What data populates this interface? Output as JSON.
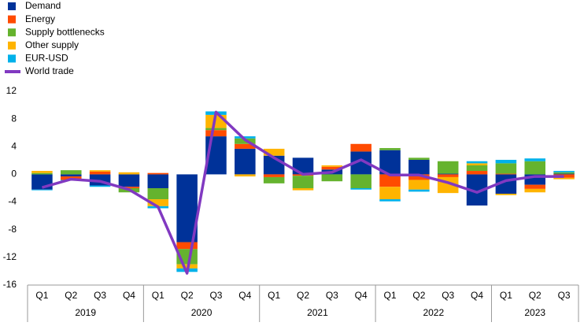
{
  "chart_data": {
    "type": "bar",
    "stacked": true,
    "categories": [
      "Q1",
      "Q2",
      "Q3",
      "Q4",
      "Q1",
      "Q2",
      "Q3",
      "Q4",
      "Q1",
      "Q2",
      "Q3",
      "Q4",
      "Q1",
      "Q2",
      "Q3",
      "Q4",
      "Q1",
      "Q2",
      "Q3"
    ],
    "groups": [
      {
        "label": "2019",
        "count": 4
      },
      {
        "label": "2020",
        "count": 4
      },
      {
        "label": "2021",
        "count": 4
      },
      {
        "label": "2022",
        "count": 4
      },
      {
        "label": "2023",
        "count": 3
      }
    ],
    "series": [
      {
        "name": "Demand",
        "color": "#003299",
        "values": [
          -2.2,
          -0.3,
          -1.6,
          -1.8,
          -2.0,
          -9.8,
          5.5,
          3.7,
          2.7,
          2.4,
          0.7,
          3.3,
          3.5,
          2.1,
          0.1,
          -4.5,
          -2.8,
          -1.5,
          0.1
        ]
      },
      {
        "name": "Energy",
        "color": "#ff4b00",
        "values": [
          0,
          -0.5,
          0.4,
          -0.2,
          0.2,
          -1.0,
          0.9,
          0.7,
          -0.4,
          -0.2,
          0.4,
          1.1,
          -1.8,
          -0.8,
          -0.4,
          0.5,
          0.1,
          -0.6,
          -0.5
        ]
      },
      {
        "name": "Supply bottlenecks",
        "color": "#65b32e",
        "values": [
          0.2,
          0.6,
          0,
          -0.6,
          -1.6,
          -2.2,
          0.3,
          0.8,
          -0.9,
          -1.8,
          -1.0,
          -2.0,
          0.3,
          0.3,
          1.8,
          0.8,
          1.5,
          1.9,
          0.2
        ]
      },
      {
        "name": "Other supply",
        "color": "#ffb400",
        "values": [
          0.3,
          0,
          0.2,
          0.3,
          -1.0,
          -0.6,
          1.9,
          -0.3,
          1.0,
          -0.3,
          0.2,
          0,
          -1.8,
          -1.4,
          -2.3,
          0.3,
          -0.2,
          -0.5,
          -0.2
        ]
      },
      {
        "name": "EUR-USD",
        "color": "#00b1ea",
        "values": [
          -0.1,
          -0.1,
          -0.2,
          0,
          -0.3,
          -0.5,
          0.5,
          0.3,
          0,
          0,
          0,
          -0.2,
          -0.3,
          -0.3,
          0,
          0.3,
          0.5,
          0.4,
          0.2
        ]
      },
      {
        "name": "World trade",
        "color": "#8139c1",
        "type": "line",
        "values": [
          -1.9,
          -0.7,
          -1.0,
          -2.2,
          -4.7,
          -14.3,
          9.0,
          5.0,
          2.4,
          0.0,
          0.3,
          2.1,
          -0.1,
          -0.1,
          -1.2,
          -2.6,
          -0.9,
          -0.3,
          -0.3
        ]
      }
    ],
    "ylim": [
      -16,
      12
    ],
    "yticks": [
      -16,
      -12,
      -8,
      -4,
      0,
      4,
      8,
      12
    ],
    "grid": false
  }
}
